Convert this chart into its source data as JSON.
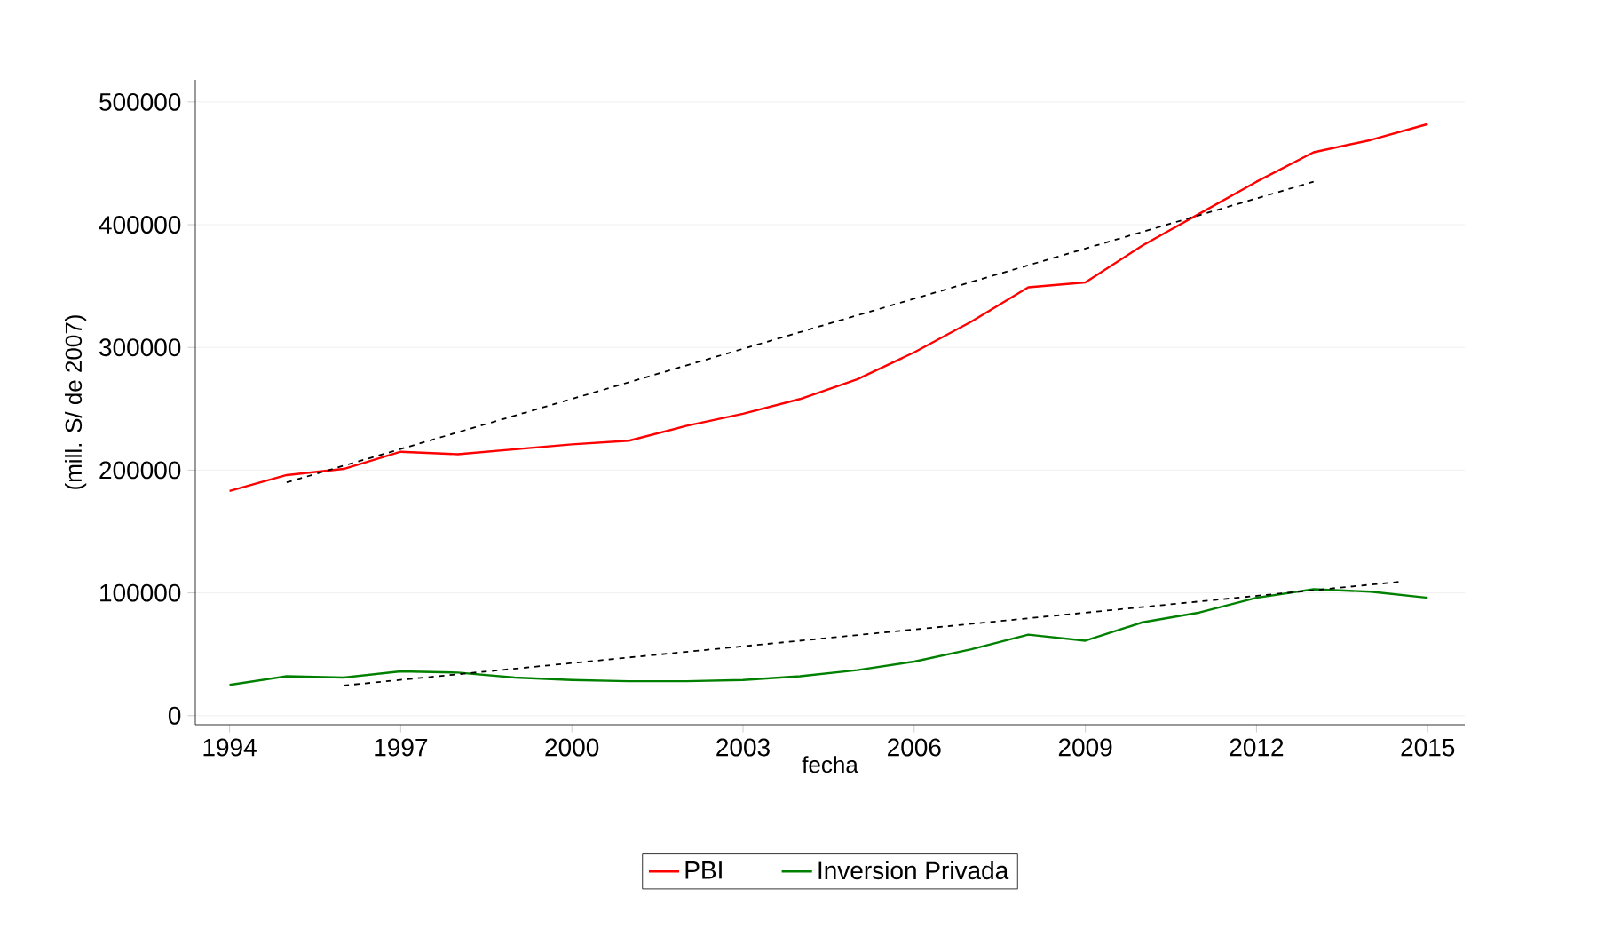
{
  "chart_data": {
    "type": "line",
    "xlabel": "fecha",
    "ylabel": "(mill. S/ de 2007)",
    "x": [
      1994,
      1995,
      1996,
      1997,
      1998,
      1999,
      2000,
      2001,
      2002,
      2003,
      2004,
      2005,
      2006,
      2007,
      2008,
      2009,
      2010,
      2011,
      2012,
      2013,
      2014,
      2015
    ],
    "series": [
      {
        "name": "PBI",
        "color": "#ff0000",
        "values": [
          183000,
          196000,
          201000,
          215000,
          213000,
          217000,
          221000,
          224000,
          236000,
          246000,
          258000,
          274000,
          296000,
          321000,
          349000,
          353000,
          383000,
          409000,
          435000,
          459000,
          469000,
          482000
        ]
      },
      {
        "name": "Inversion Privada",
        "color": "#008000",
        "values": [
          25000,
          32000,
          31000,
          36000,
          35000,
          31000,
          29000,
          28000,
          28000,
          29000,
          32000,
          37000,
          44000,
          54000,
          66000,
          61000,
          76000,
          84000,
          96000,
          103000,
          101000,
          96000
        ]
      },
      {
        "type": "line",
        "color": "#000000",
        "line_style": "dashed",
        "x": [
          1995,
          2013
        ],
        "values": [
          190000,
          435000
        ]
      },
      {
        "type": "line",
        "color": "#000000",
        "line_style": "dashed",
        "x": [
          1996,
          2014.5
        ],
        "values": [
          24500,
          109000
        ]
      }
    ],
    "xlim": [
      1993.4,
      2015.65
    ],
    "ylim": [
      -7400,
      518000
    ],
    "xticks": [
      1994,
      1997,
      2000,
      2003,
      2006,
      2009,
      2012,
      2015
    ],
    "yticks": [
      0,
      100000,
      200000,
      300000,
      400000,
      500000
    ],
    "grid": "y",
    "legend": "bottom",
    "line_style": "solid",
    "marker": "none"
  }
}
